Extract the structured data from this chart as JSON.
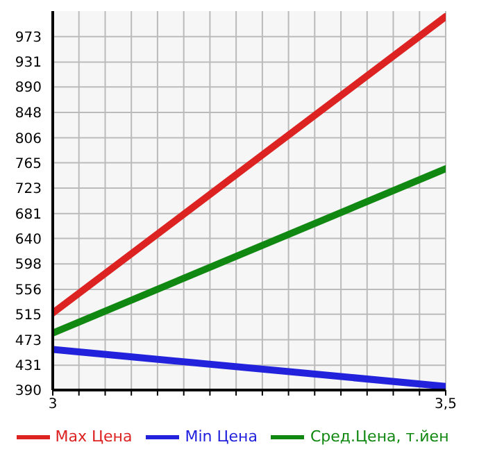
{
  "chart_data": {
    "type": "line",
    "x": [
      3,
      3.5
    ],
    "series": [
      {
        "name": "Max Цена",
        "color": "#dd2222",
        "values": [
          517,
          1006
        ]
      },
      {
        "name": "Min Цена",
        "color": "#2222dd",
        "values": [
          457,
          396
        ]
      },
      {
        "name": "Сред.Цена, т.йен",
        "color": "#118811",
        "values": [
          484,
          755
        ]
      }
    ],
    "xlim": [
      3,
      3.5
    ],
    "xticks": [
      3,
      {
        "value": 3.0333,
        "label": null
      },
      {
        "value": 3.0667,
        "label": null
      },
      {
        "value": 3.1,
        "label": null
      },
      {
        "value": 3.1333,
        "label": null
      },
      {
        "value": 3.1667,
        "label": null
      },
      {
        "value": 3.2,
        "label": null
      },
      {
        "value": 3.2333,
        "label": null
      },
      {
        "value": 3.2667,
        "label": null
      },
      {
        "value": 3.3,
        "label": null
      },
      {
        "value": 3.3333,
        "label": null
      },
      {
        "value": 3.3667,
        "label": null
      },
      {
        "value": 3.4,
        "label": null
      },
      {
        "value": 3.4333,
        "label": null
      },
      {
        "value": 3.4667,
        "label": null
      },
      {
        "value": 3.5,
        "label": "3,5"
      }
    ],
    "ylim": [
      390,
      1015
    ],
    "yticks": [
      390,
      431,
      473,
      515,
      556,
      598,
      640,
      681,
      723,
      765,
      806,
      848,
      890,
      931,
      973
    ],
    "grid": true,
    "legend": "bottom",
    "marker": "none",
    "line_style": "solid"
  }
}
